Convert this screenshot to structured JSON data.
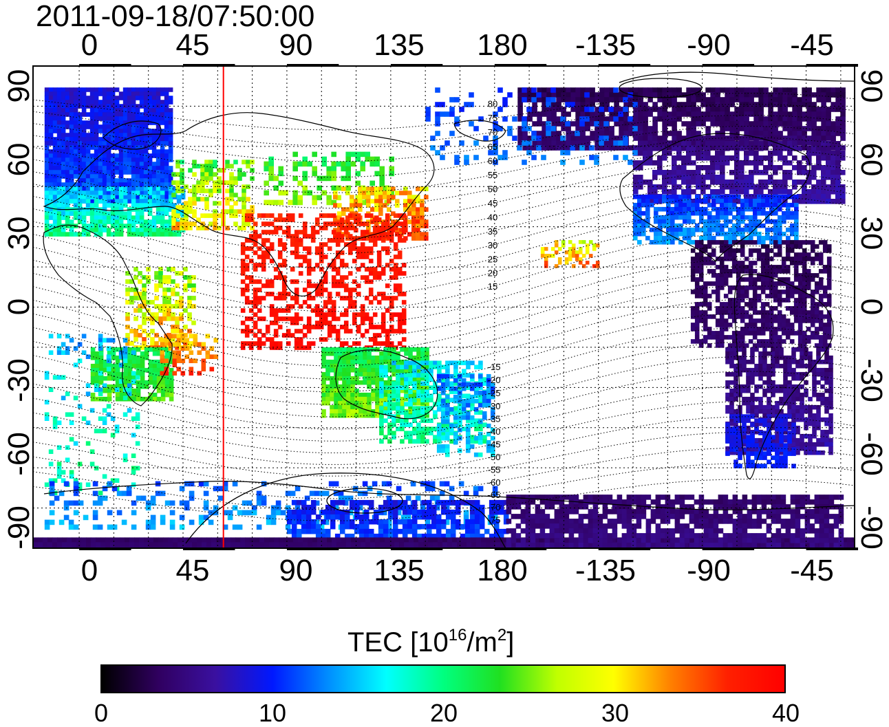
{
  "title": "2011-09-18/07:50:00",
  "top_lon_labels": [
    "0",
    "45",
    "90",
    "135",
    "180",
    "-135",
    "-90",
    "-45"
  ],
  "bottom_lon_labels": [
    "0",
    "45",
    "90",
    "135",
    "180",
    "-135",
    "-90",
    "-45"
  ],
  "left_lat_labels": [
    "90",
    "60",
    "30",
    "0",
    "-30",
    "-60",
    "-90"
  ],
  "right_lat_labels": [
    "90",
    "60",
    "30",
    "0",
    "-30",
    "-60",
    "-90"
  ],
  "colorbar": {
    "title": "TEC  [10",
    "title_sup1": "16",
    "title_mid": "/m",
    "title_sup2": "2",
    "title_end": "]",
    "labels": [
      "0",
      "10",
      "20",
      "30",
      "40"
    ],
    "range": [
      0,
      40
    ],
    "stops": [
      "#000000",
      "#300060",
      "#3a10a0",
      "#0018ff",
      "#0090ff",
      "#00ffff",
      "#00ff80",
      "#20e020",
      "#c0ff00",
      "#ffff00",
      "#ff8000",
      "#ff2000",
      "#ff0000"
    ]
  },
  "magnetic_latitude_labels": [
    "80",
    "75",
    "70",
    "65",
    "60",
    "55",
    "50",
    "45",
    "40",
    "35",
    "30",
    "25",
    "20",
    "15",
    "-15",
    "-20",
    "-25",
    "-30",
    "-35",
    "-40",
    "-45",
    "-50",
    "-55",
    "-60",
    "-65",
    "-70",
    "-75"
  ],
  "map": {
    "lon_range": [
      -20,
      336
    ],
    "lat_range": [
      -90,
      90
    ],
    "terminator_lon": 62.5,
    "grid": "dotted, every 15 degrees"
  }
}
